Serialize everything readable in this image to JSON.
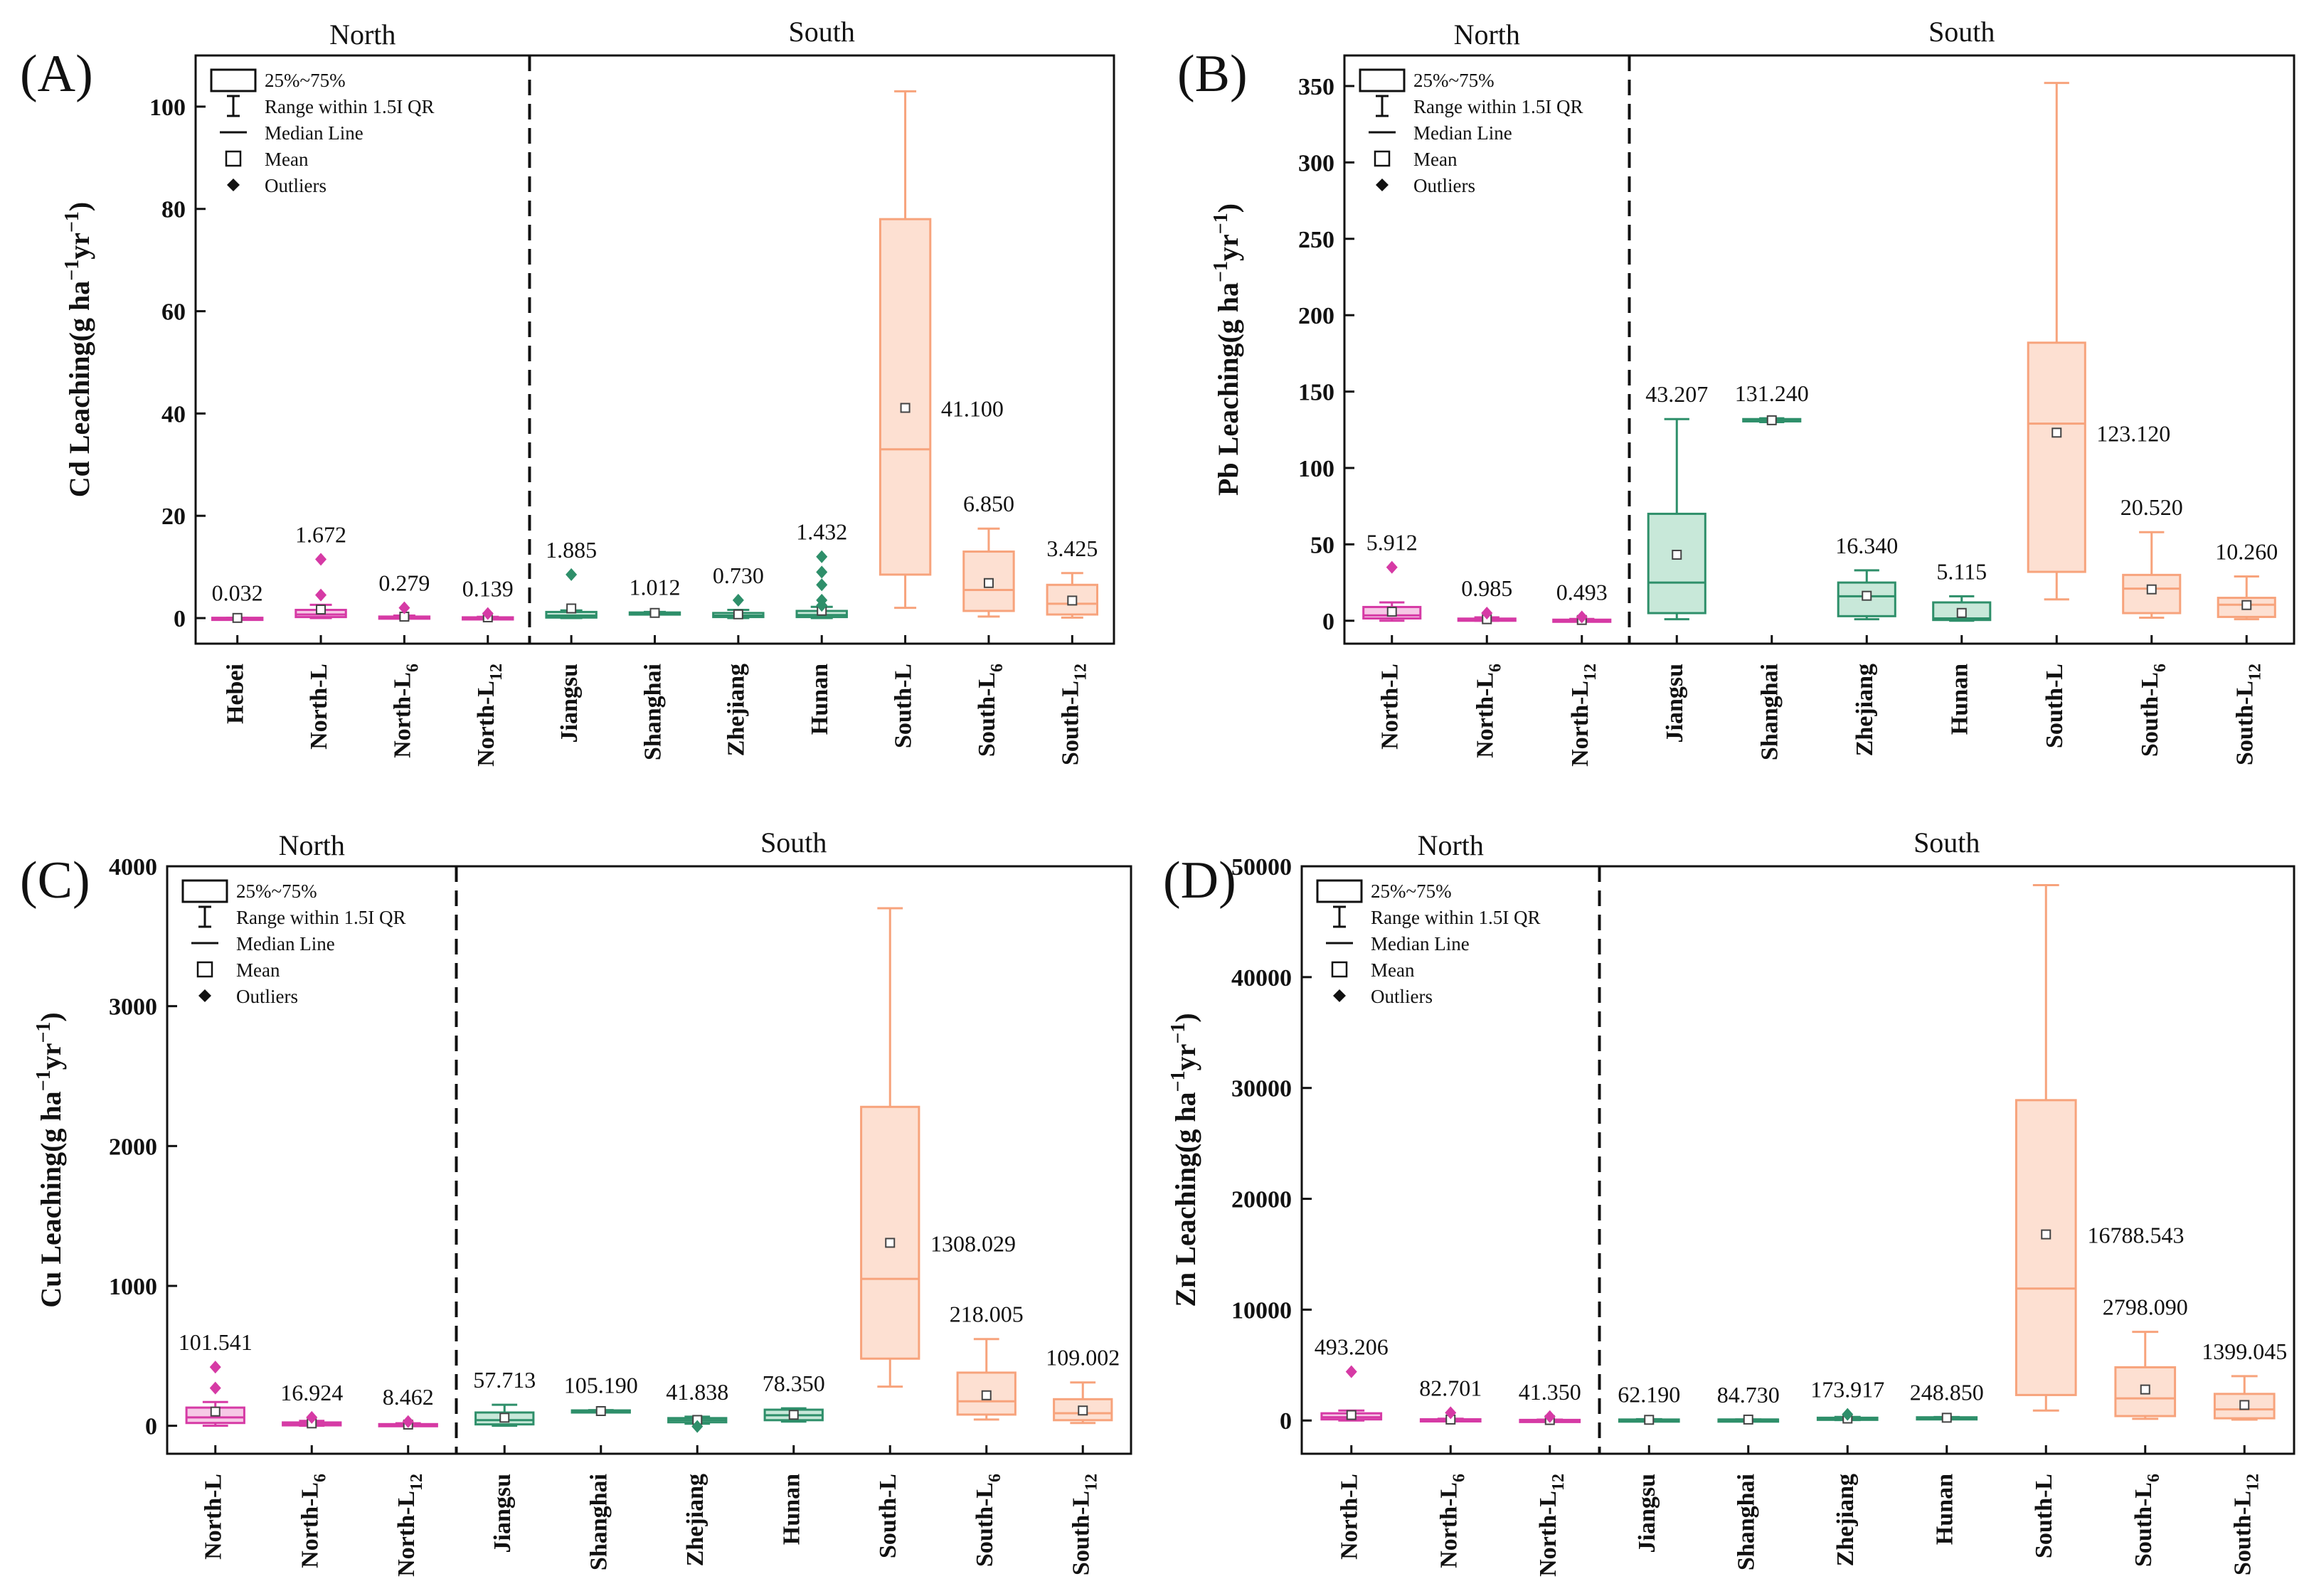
{
  "colors": {
    "north": "#d63aa5",
    "north_fill": "#f6c9e6",
    "mid": "#2e8f6a",
    "mid_fill": "#c8e8d9",
    "south": "#f7a37c",
    "south_fill": "#fde0d2",
    "axis": "#111111",
    "divider": "#111111"
  },
  "legend": {
    "box": "25%~75%",
    "range": "Range within 1.5I QR",
    "median": "Median Line",
    "mean": "Mean",
    "outliers": "Outliers"
  },
  "chart_data": [
    {
      "type": "box",
      "panel_label": "(A)",
      "ylabel": "Cd Leaching(g ha⁻¹yr⁻¹)",
      "ylim": [
        -5,
        110
      ],
      "yticks": [
        0,
        20,
        40,
        60,
        80,
        100
      ],
      "region_labels": [
        "North",
        "South"
      ],
      "divider_after_index": 3,
      "categories": [
        {
          "label": "Hebei",
          "group": "north",
          "q1": 0,
          "q3": 0.06,
          "median": 0.03,
          "whisker_low": 0,
          "whisker_high": 0.06,
          "mean": 0.032,
          "mean_label": "0.032",
          "outliers": []
        },
        {
          "label": "North-L",
          "group": "north",
          "q1": 0.2,
          "q3": 1.6,
          "median": 0.7,
          "whisker_low": 0,
          "whisker_high": 2.6,
          "mean": 1.672,
          "mean_label": "1.672",
          "outliers": [
            11.5,
            4.5
          ]
        },
        {
          "label": "North-L6",
          "group": "north",
          "q1": 0.05,
          "q3": 0.3,
          "median": 0.15,
          "whisker_low": 0,
          "whisker_high": 0.5,
          "mean": 0.279,
          "mean_label": "0.279",
          "outliers": [
            2.0
          ]
        },
        {
          "label": "North-L12",
          "group": "north",
          "q1": 0.03,
          "q3": 0.15,
          "median": 0.08,
          "whisker_low": 0,
          "whisker_high": 0.25,
          "mean": 0.139,
          "mean_label": "0.139",
          "outliers": [
            0.9
          ]
        },
        {
          "label": "Jiangsu",
          "group": "mid",
          "q1": 0.1,
          "q3": 1.2,
          "median": 0.5,
          "whisker_low": 0,
          "whisker_high": 1.5,
          "mean": 1.885,
          "mean_label": "1.885",
          "outliers": [
            8.5
          ]
        },
        {
          "label": "Shanghai",
          "group": "mid",
          "q1": 0.9,
          "q3": 1.1,
          "median": 1.0,
          "whisker_low": 0.8,
          "whisker_high": 1.2,
          "mean": 1.012,
          "mean_label": "1.012",
          "outliers": []
        },
        {
          "label": "Zhejiang",
          "group": "mid",
          "q1": 0.2,
          "q3": 1.0,
          "median": 0.5,
          "whisker_low": 0,
          "whisker_high": 1.6,
          "mean": 0.73,
          "mean_label": "0.730",
          "outliers": [
            3.5
          ]
        },
        {
          "label": "Hunan",
          "group": "mid",
          "q1": 0.2,
          "q3": 1.4,
          "median": 0.6,
          "whisker_low": 0,
          "whisker_high": 2.2,
          "mean": 1.432,
          "mean_label": "1.432",
          "outliers": [
            12,
            9,
            6.5,
            3.5,
            2.5
          ]
        },
        {
          "label": "South-L",
          "group": "south",
          "q1": 8.5,
          "q3": 78,
          "median": 33,
          "whisker_low": 2,
          "whisker_high": 103,
          "mean": 41.1,
          "mean_label": "41.100",
          "outliers": []
        },
        {
          "label": "South-L6",
          "group": "south",
          "q1": 1.4,
          "q3": 13,
          "median": 5.5,
          "whisker_low": 0.3,
          "whisker_high": 17.5,
          "mean": 6.85,
          "mean_label": "6.850",
          "outliers": []
        },
        {
          "label": "South-L12",
          "group": "south",
          "q1": 0.7,
          "q3": 6.5,
          "median": 2.8,
          "whisker_low": 0.1,
          "whisker_high": 8.8,
          "mean": 3.425,
          "mean_label": "3.425",
          "outliers": []
        }
      ]
    },
    {
      "type": "box",
      "panel_label": "(B)",
      "ylabel": "Pb Leaching(g ha⁻¹yr⁻¹)",
      "ylim": [
        -15,
        370
      ],
      "yticks": [
        0,
        50,
        100,
        150,
        200,
        250,
        300,
        350
      ],
      "region_labels": [
        "North",
        "South"
      ],
      "divider_after_index": 2,
      "categories": [
        {
          "label": "North-L",
          "group": "north",
          "q1": 1.5,
          "q3": 9,
          "median": 3.5,
          "whisker_low": 0,
          "whisker_high": 12,
          "mean": 5.912,
          "mean_label": "5.912",
          "outliers": [
            35
          ]
        },
        {
          "label": "North-L6",
          "group": "north",
          "q1": 0.2,
          "q3": 1.4,
          "median": 0.6,
          "whisker_low": 0,
          "whisker_high": 2.2,
          "mean": 0.985,
          "mean_label": "0.985",
          "outliers": [
            5
          ]
        },
        {
          "label": "North-L12",
          "group": "north",
          "q1": 0.1,
          "q3": 0.7,
          "median": 0.3,
          "whisker_low": 0,
          "whisker_high": 1.2,
          "mean": 0.493,
          "mean_label": "0.493",
          "outliers": [
            2.5
          ]
        },
        {
          "label": "Jiangsu",
          "group": "mid",
          "q1": 5,
          "q3": 70,
          "median": 25,
          "whisker_low": 1,
          "whisker_high": 132,
          "mean": 43.207,
          "mean_label": "43.207",
          "outliers": []
        },
        {
          "label": "Shanghai",
          "group": "mid",
          "q1": 130.5,
          "q3": 132,
          "median": 131.2,
          "whisker_low": 130,
          "whisker_high": 132.5,
          "mean": 131.24,
          "mean_label": "131.240",
          "outliers": []
        },
        {
          "label": "Zhejiang",
          "group": "mid",
          "q1": 3,
          "q3": 25,
          "median": 16,
          "whisker_low": 1,
          "whisker_high": 33,
          "mean": 16.34,
          "mean_label": "16.340",
          "outliers": []
        },
        {
          "label": "Hunan",
          "group": "mid",
          "q1": 0.5,
          "q3": 12,
          "median": 1.5,
          "whisker_low": 0,
          "whisker_high": 16,
          "mean": 5.115,
          "mean_label": "5.115",
          "outliers": []
        },
        {
          "label": "South-L",
          "group": "south",
          "q1": 32,
          "q3": 182,
          "median": 129,
          "whisker_low": 14,
          "whisker_high": 352,
          "mean": 123.12,
          "mean_label": "123.120",
          "outliers": []
        },
        {
          "label": "South-L6",
          "group": "south",
          "q1": 5,
          "q3": 30,
          "median": 21,
          "whisker_low": 2,
          "whisker_high": 58,
          "mean": 20.52,
          "mean_label": "20.520",
          "outliers": []
        },
        {
          "label": "South-L12",
          "group": "south",
          "q1": 2.5,
          "q3": 15,
          "median": 10.5,
          "whisker_low": 1,
          "whisker_high": 29,
          "mean": 10.26,
          "mean_label": "10.260",
          "outliers": []
        }
      ]
    },
    {
      "type": "box",
      "panel_label": "(C)",
      "ylabel": "Cu Leaching(g ha⁻¹yr⁻¹)",
      "ylim": [
        -200,
        4000
      ],
      "yticks": [
        0,
        1000,
        2000,
        3000,
        4000
      ],
      "region_labels": [
        "North",
        "South"
      ],
      "divider_after_index": 2,
      "categories": [
        {
          "label": "North-L",
          "group": "north",
          "q1": 20,
          "q3": 130,
          "median": 60,
          "whisker_low": 0,
          "whisker_high": 170,
          "mean": 101.541,
          "mean_label": "101.541",
          "outliers": [
            420,
            270
          ]
        },
        {
          "label": "North-L6",
          "group": "north",
          "q1": 3,
          "q3": 24,
          "median": 10,
          "whisker_low": 0,
          "whisker_high": 35,
          "mean": 16.924,
          "mean_label": "16.924",
          "outliers": [
            60
          ]
        },
        {
          "label": "North-L12",
          "group": "north",
          "q1": 2,
          "q3": 12,
          "median": 5,
          "whisker_low": 0,
          "whisker_high": 18,
          "mean": 8.462,
          "mean_label": "8.462",
          "outliers": [
            30
          ]
        },
        {
          "label": "Jiangsu",
          "group": "mid",
          "q1": 10,
          "q3": 95,
          "median": 40,
          "whisker_low": 0,
          "whisker_high": 150,
          "mean": 57.713,
          "mean_label": "57.713",
          "outliers": []
        },
        {
          "label": "Shanghai",
          "group": "mid",
          "q1": 100,
          "q3": 110,
          "median": 105,
          "whisker_low": 98,
          "whisker_high": 112,
          "mean": 105.19,
          "mean_label": "105.190",
          "outliers": []
        },
        {
          "label": "Zhejiang",
          "group": "mid",
          "q1": 25,
          "q3": 55,
          "median": 40,
          "whisker_low": 15,
          "whisker_high": 65,
          "mean": 41.838,
          "mean_label": "41.838",
          "outliers": [
            -5
          ]
        },
        {
          "label": "Hunan",
          "group": "mid",
          "q1": 40,
          "q3": 115,
          "median": 75,
          "whisker_low": 30,
          "whisker_high": 125,
          "mean": 78.35,
          "mean_label": "78.350",
          "outliers": []
        },
        {
          "label": "South-L",
          "group": "south",
          "q1": 480,
          "q3": 2280,
          "median": 1050,
          "whisker_low": 280,
          "whisker_high": 3700,
          "mean": 1308.029,
          "mean_label": "1308.029",
          "outliers": []
        },
        {
          "label": "South-L6",
          "group": "south",
          "q1": 80,
          "q3": 380,
          "median": 175,
          "whisker_low": 45,
          "whisker_high": 620,
          "mean": 218.005,
          "mean_label": "218.005",
          "outliers": []
        },
        {
          "label": "South-L12",
          "group": "south",
          "q1": 40,
          "q3": 190,
          "median": 90,
          "whisker_low": 20,
          "whisker_high": 310,
          "mean": 109.002,
          "mean_label": "109.002",
          "outliers": []
        }
      ]
    },
    {
      "type": "box",
      "panel_label": "(D)",
      "ylabel": "Zn Leaching(g ha⁻¹yr⁻¹)",
      "ylim": [
        -3000,
        50000
      ],
      "yticks": [
        0,
        10000,
        20000,
        30000,
        40000,
        50000
      ],
      "region_labels": [
        "North",
        "South"
      ],
      "divider_after_index": 2,
      "categories": [
        {
          "label": "North-L",
          "group": "north",
          "q1": 100,
          "q3": 650,
          "median": 300,
          "whisker_low": 0,
          "whisker_high": 900,
          "mean": 493.206,
          "mean_label": "493.206",
          "outliers": [
            4400
          ]
        },
        {
          "label": "North-L6",
          "group": "north",
          "q1": 20,
          "q3": 110,
          "median": 50,
          "whisker_low": 0,
          "whisker_high": 160,
          "mean": 82.701,
          "mean_label": "82.701",
          "outliers": [
            700
          ]
        },
        {
          "label": "North-L12",
          "group": "north",
          "q1": 10,
          "q3": 55,
          "median": 25,
          "whisker_low": 0,
          "whisker_high": 80,
          "mean": 41.35,
          "mean_label": "41.350",
          "outliers": [
            350
          ]
        },
        {
          "label": "Jiangsu",
          "group": "mid",
          "q1": 20,
          "q3": 90,
          "median": 50,
          "whisker_low": 5,
          "whisker_high": 120,
          "mean": 62.19,
          "mean_label": "62.190",
          "outliers": []
        },
        {
          "label": "Shanghai",
          "group": "mid",
          "q1": 80,
          "q3": 90,
          "median": 85,
          "whisker_low": 78,
          "whisker_high": 92,
          "mean": 84.73,
          "mean_label": "84.730",
          "outliers": []
        },
        {
          "label": "Zhejiang",
          "group": "mid",
          "q1": 80,
          "q3": 250,
          "median": 150,
          "whisker_low": 40,
          "whisker_high": 320,
          "mean": 173.917,
          "mean_label": "173.917",
          "outliers": [
            550
          ]
        },
        {
          "label": "Hunan",
          "group": "mid",
          "q1": 200,
          "q3": 290,
          "median": 245,
          "whisker_low": 180,
          "whisker_high": 310,
          "mean": 248.85,
          "mean_label": "248.850",
          "outliers": []
        },
        {
          "label": "South-L",
          "group": "south",
          "q1": 2300,
          "q3": 28900,
          "median": 11900,
          "whisker_low": 900,
          "whisker_high": 48300,
          "mean": 16788.543,
          "mean_label": "16788.543",
          "outliers": []
        },
        {
          "label": "South-L6",
          "group": "south",
          "q1": 400,
          "q3": 4800,
          "median": 2000,
          "whisker_low": 150,
          "whisker_high": 8000,
          "mean": 2798.09,
          "mean_label": "2798.090",
          "outliers": []
        },
        {
          "label": "South-L12",
          "group": "south",
          "q1": 200,
          "q3": 2400,
          "median": 1000,
          "whisker_low": 80,
          "whisker_high": 4000,
          "mean": 1399.045,
          "mean_label": "1399.045",
          "outliers": []
        }
      ]
    }
  ]
}
